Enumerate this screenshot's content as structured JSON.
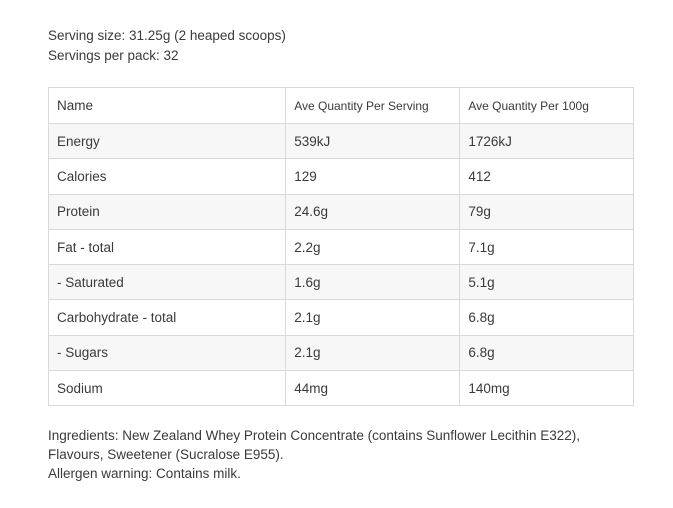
{
  "serving": {
    "size": "Serving size: 31.25g (2 heaped scoops)",
    "per_pack": "Servings per pack: 32"
  },
  "table": {
    "headers": [
      "Name",
      "Ave Quantity Per Serving",
      "Ave Quantity Per 100g"
    ],
    "rows": [
      {
        "name": "Energy",
        "per_serving": "539kJ",
        "per_100g": "1726kJ"
      },
      {
        "name": "Calories",
        "per_serving": "129",
        "per_100g": "412"
      },
      {
        "name": "Protein",
        "per_serving": "24.6g",
        "per_100g": "79g"
      },
      {
        "name": "Fat - total",
        "per_serving": "2.2g",
        "per_100g": "7.1g"
      },
      {
        "name": "- Saturated",
        "per_serving": "1.6g",
        "per_100g": "5.1g"
      },
      {
        "name": "Carbohydrate - total",
        "per_serving": "2.1g",
        "per_100g": "6.8g"
      },
      {
        "name": "- Sugars",
        "per_serving": "2.1g",
        "per_100g": "6.8g"
      },
      {
        "name": "Sodium",
        "per_serving": "44mg",
        "per_100g": "140mg"
      }
    ]
  },
  "notes": {
    "ingredients_line1": "Ingredients: New Zealand Whey Protein Concentrate (contains Sunflower Lecithin E322),",
    "ingredients_line2": "Flavours, Sweetener (Sucralose E955).",
    "allergen": "Allergen warning: Contains milk."
  }
}
